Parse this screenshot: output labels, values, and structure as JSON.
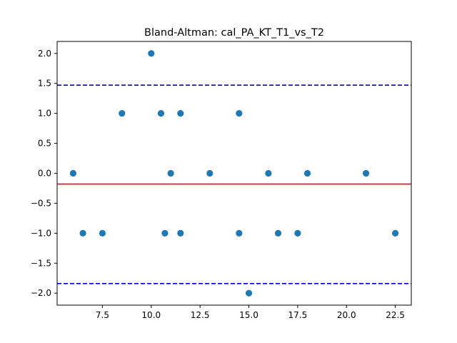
{
  "chart_data": {
    "type": "scatter",
    "title": "Bland-Altman: cal_PA_KT_T1_vs_T2",
    "xlabel": "",
    "ylabel": "",
    "xlim": [
      5.18,
      23.32
    ],
    "ylim": [
      -2.2,
      2.2
    ],
    "xticks": [
      7.5,
      10.0,
      12.5,
      15.0,
      17.5,
      20.0,
      22.5
    ],
    "xtick_labels": [
      "7.5",
      "10.0",
      "12.5",
      "15.0",
      "17.5",
      "20.0",
      "22.5"
    ],
    "yticks": [
      -2.0,
      -1.5,
      -1.0,
      -0.5,
      0.0,
      0.5,
      1.0,
      1.5,
      2.0
    ],
    "ytick_labels": [
      "−2.0",
      "−1.5",
      "−1.0",
      "−0.5",
      "0.0",
      "0.5",
      "1.0",
      "1.5",
      "2.0"
    ],
    "grid": false,
    "series": [
      {
        "color": "#1f77b4",
        "points": [
          [
            6.0,
            0
          ],
          [
            6.5,
            -1
          ],
          [
            7.5,
            -1
          ],
          [
            8.5,
            1
          ],
          [
            10.0,
            2
          ],
          [
            10.5,
            1
          ],
          [
            10.7,
            -1
          ],
          [
            11.0,
            0
          ],
          [
            11.5,
            1
          ],
          [
            11.5,
            -1
          ],
          [
            13.0,
            0
          ],
          [
            14.5,
            1
          ],
          [
            14.5,
            -1
          ],
          [
            15.0,
            -2
          ],
          [
            16.0,
            0
          ],
          [
            16.5,
            -1
          ],
          [
            17.5,
            -1
          ],
          [
            18.0,
            0
          ],
          [
            21.0,
            0
          ],
          [
            22.5,
            -1
          ]
        ]
      }
    ],
    "reference_lines": [
      {
        "kind": "mean",
        "y": -0.18,
        "color": "#ff0000",
        "style": "solid"
      },
      {
        "kind": "upper-limit",
        "y": 1.47,
        "color": "#0000cc",
        "style": "dashed"
      },
      {
        "kind": "lower-limit",
        "y": -1.84,
        "color": "#0000cc",
        "style": "dashed"
      }
    ]
  }
}
